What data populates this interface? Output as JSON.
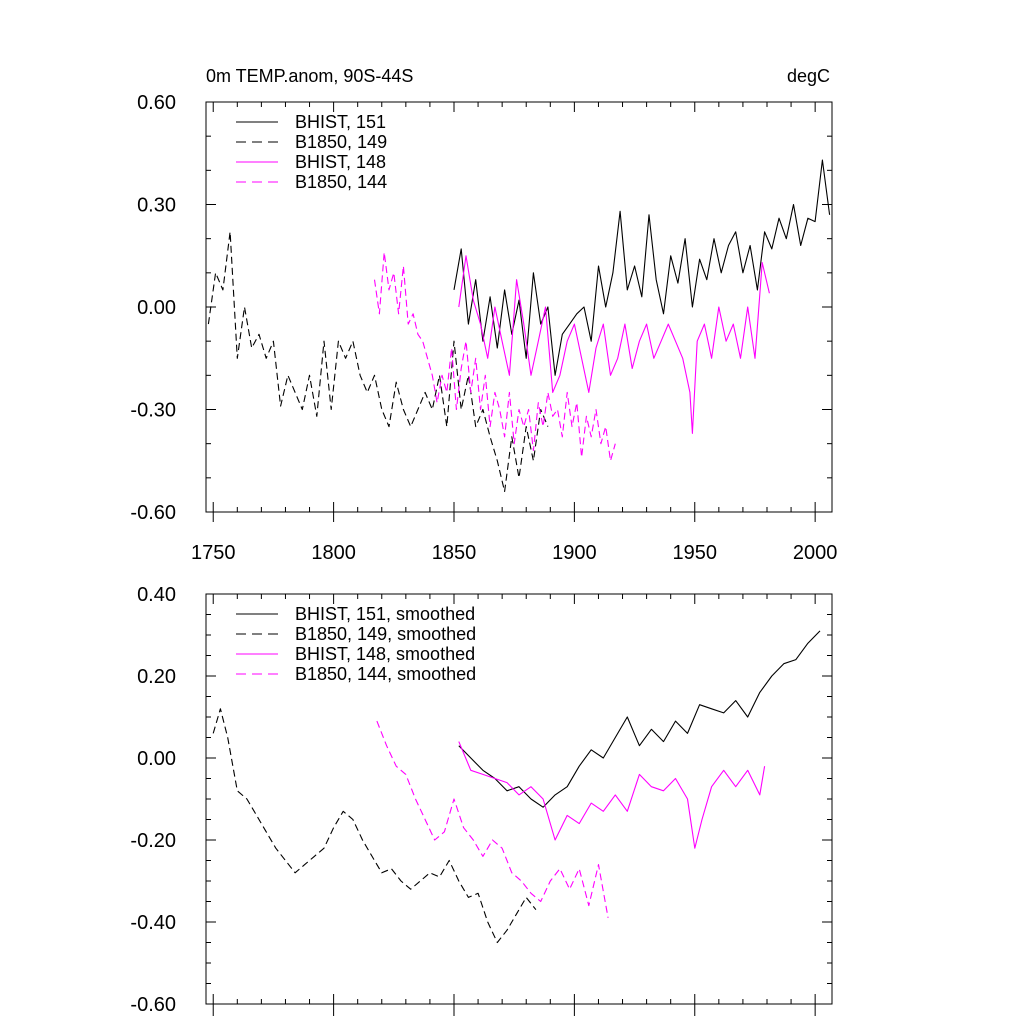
{
  "chart_data": [
    {
      "type": "line",
      "title": "0m TEMP.anom, 90S-44S",
      "units": "degC",
      "xlim": [
        1747,
        2007
      ],
      "ylim": [
        -0.6,
        0.6
      ],
      "yticks": [
        "0.60",
        "0.30",
        "0.00",
        "-0.30",
        "-0.60"
      ],
      "xticks": [
        "1750",
        "1800",
        "1850",
        "1900",
        "1950",
        "2000"
      ],
      "legend_position": "top-left",
      "series": [
        {
          "name": "BHIST, 151",
          "color": "#000000",
          "dash": "solid",
          "x": [
            1850,
            1853,
            1856,
            1859,
            1862,
            1865,
            1868,
            1871,
            1874,
            1877,
            1880,
            1883,
            1886,
            1889,
            1892,
            1895,
            1898,
            1901,
            1904,
            1907,
            1910,
            1913,
            1916,
            1919,
            1922,
            1925,
            1928,
            1931,
            1934,
            1937,
            1940,
            1943,
            1946,
            1949,
            1952,
            1955,
            1958,
            1961,
            1964,
            1967,
            1970,
            1973,
            1976,
            1979,
            1982,
            1985,
            1988,
            1991,
            1994,
            1997,
            2000,
            2003,
            2006
          ],
          "y": [
            0.05,
            0.17,
            -0.05,
            0.08,
            -0.1,
            0.03,
            -0.12,
            0.05,
            -0.08,
            0.02,
            -0.15,
            0.1,
            -0.05,
            0.0,
            -0.2,
            -0.08,
            -0.05,
            -0.02,
            0.0,
            -0.1,
            0.12,
            0.0,
            0.1,
            0.28,
            0.05,
            0.12,
            0.03,
            0.27,
            0.08,
            -0.02,
            0.15,
            0.07,
            0.2,
            0.0,
            0.14,
            0.08,
            0.2,
            0.1,
            0.18,
            0.22,
            0.1,
            0.18,
            0.05,
            0.22,
            0.17,
            0.26,
            0.2,
            0.3,
            0.18,
            0.26,
            0.25,
            0.43,
            0.27
          ]
        },
        {
          "name": "B1850, 149",
          "color": "#000000",
          "dash": "dashed",
          "x": [
            1748,
            1751,
            1754,
            1757,
            1760,
            1763,
            1766,
            1769,
            1772,
            1775,
            1778,
            1781,
            1784,
            1787,
            1790,
            1793,
            1796,
            1799,
            1802,
            1805,
            1808,
            1811,
            1814,
            1817,
            1820,
            1823,
            1826,
            1829,
            1832,
            1835,
            1838,
            1841,
            1844,
            1847,
            1850,
            1853,
            1856,
            1859,
            1862,
            1865,
            1868,
            1871,
            1874,
            1877,
            1880,
            1883,
            1886,
            1889
          ],
          "y": [
            -0.05,
            0.1,
            0.05,
            0.22,
            -0.15,
            0.0,
            -0.12,
            -0.08,
            -0.15,
            -0.1,
            -0.29,
            -0.2,
            -0.25,
            -0.3,
            -0.2,
            -0.32,
            -0.1,
            -0.3,
            -0.1,
            -0.15,
            -0.1,
            -0.2,
            -0.25,
            -0.2,
            -0.3,
            -0.35,
            -0.22,
            -0.3,
            -0.35,
            -0.3,
            -0.25,
            -0.3,
            -0.2,
            -0.35,
            -0.1,
            -0.3,
            -0.2,
            -0.35,
            -0.3,
            -0.38,
            -0.45,
            -0.54,
            -0.38,
            -0.5,
            -0.35,
            -0.45,
            -0.3,
            -0.35
          ]
        },
        {
          "name": "BHIST, 148",
          "color": "#ff00ff",
          "dash": "solid",
          "x": [
            1852,
            1855,
            1858,
            1861,
            1864,
            1867,
            1870,
            1873,
            1876,
            1879,
            1882,
            1885,
            1888,
            1891,
            1894,
            1897,
            1900,
            1903,
            1906,
            1909,
            1912,
            1915,
            1918,
            1921,
            1924,
            1927,
            1930,
            1933,
            1936,
            1939,
            1942,
            1945,
            1948,
            1949,
            1951,
            1954,
            1957,
            1960,
            1963,
            1966,
            1969,
            1972,
            1975,
            1978,
            1981
          ],
          "y": [
            0.0,
            0.15,
            0.02,
            -0.05,
            -0.15,
            0.0,
            -0.1,
            -0.2,
            0.08,
            -0.05,
            -0.2,
            -0.1,
            0.0,
            -0.25,
            -0.2,
            -0.1,
            -0.05,
            -0.15,
            -0.25,
            -0.12,
            -0.05,
            -0.2,
            -0.15,
            -0.05,
            -0.18,
            -0.1,
            -0.05,
            -0.15,
            -0.1,
            -0.05,
            -0.1,
            -0.15,
            -0.25,
            -0.37,
            -0.1,
            -0.05,
            -0.15,
            0.0,
            -0.1,
            -0.05,
            -0.15,
            0.0,
            -0.15,
            0.13,
            0.04
          ]
        },
        {
          "name": "B1850, 144",
          "color": "#ff00ff",
          "dash": "dashed",
          "x": [
            1817,
            1819,
            1821,
            1823,
            1825,
            1827,
            1829,
            1831,
            1833,
            1835,
            1837,
            1839,
            1841,
            1843,
            1845,
            1847,
            1849,
            1851,
            1853,
            1855,
            1857,
            1859,
            1861,
            1863,
            1865,
            1867,
            1869,
            1871,
            1873,
            1875,
            1877,
            1879,
            1881,
            1883,
            1885,
            1887,
            1889,
            1891,
            1893,
            1895,
            1897,
            1899,
            1901,
            1903,
            1905,
            1907,
            1909,
            1911,
            1913,
            1915,
            1917
          ],
          "y": [
            0.08,
            -0.02,
            0.16,
            0.05,
            0.1,
            -0.02,
            0.12,
            -0.05,
            -0.02,
            -0.08,
            -0.1,
            -0.15,
            -0.2,
            -0.28,
            -0.2,
            -0.25,
            -0.12,
            -0.3,
            -0.18,
            -0.1,
            -0.25,
            -0.15,
            -0.3,
            -0.2,
            -0.35,
            -0.25,
            -0.3,
            -0.38,
            -0.25,
            -0.4,
            -0.3,
            -0.35,
            -0.3,
            -0.42,
            -0.28,
            -0.35,
            -0.25,
            -0.32,
            -0.3,
            -0.38,
            -0.25,
            -0.35,
            -0.28,
            -0.44,
            -0.32,
            -0.38,
            -0.3,
            -0.4,
            -0.35,
            -0.45,
            -0.4
          ]
        }
      ]
    },
    {
      "type": "line",
      "title": "",
      "xlim": [
        1747,
        2007
      ],
      "ylim": [
        -0.6,
        0.4
      ],
      "yticks": [
        "0.40",
        "0.20",
        "0.00",
        "-0.20",
        "-0.40",
        "-0.60"
      ],
      "legend_position": "top-left",
      "series": [
        {
          "name": "BHIST, 151, smoothed",
          "color": "#000000",
          "dash": "solid",
          "x": [
            1852,
            1857,
            1862,
            1867,
            1872,
            1877,
            1882,
            1887,
            1892,
            1897,
            1902,
            1907,
            1912,
            1917,
            1922,
            1927,
            1932,
            1937,
            1942,
            1947,
            1952,
            1957,
            1962,
            1967,
            1972,
            1977,
            1982,
            1987,
            1992,
            1997,
            2002
          ],
          "y": [
            0.03,
            0.0,
            -0.03,
            -0.05,
            -0.08,
            -0.07,
            -0.1,
            -0.12,
            -0.09,
            -0.07,
            -0.02,
            0.02,
            0.0,
            0.05,
            0.1,
            0.03,
            0.07,
            0.04,
            0.09,
            0.06,
            0.13,
            0.12,
            0.11,
            0.14,
            0.1,
            0.16,
            0.2,
            0.23,
            0.24,
            0.28,
            0.31
          ]
        },
        {
          "name": "B1850, 149, smoothed",
          "color": "#000000",
          "dash": "dashed",
          "x": [
            1750,
            1753,
            1756,
            1760,
            1764,
            1768,
            1772,
            1776,
            1780,
            1784,
            1788,
            1792,
            1796,
            1800,
            1804,
            1808,
            1812,
            1816,
            1820,
            1824,
            1828,
            1832,
            1836,
            1840,
            1844,
            1848,
            1852,
            1856,
            1860,
            1864,
            1868,
            1872,
            1876,
            1880,
            1884
          ],
          "y": [
            0.06,
            0.12,
            0.05,
            -0.08,
            -0.1,
            -0.14,
            -0.18,
            -0.22,
            -0.25,
            -0.28,
            -0.26,
            -0.24,
            -0.22,
            -0.17,
            -0.13,
            -0.15,
            -0.2,
            -0.24,
            -0.28,
            -0.27,
            -0.3,
            -0.32,
            -0.3,
            -0.28,
            -0.29,
            -0.25,
            -0.3,
            -0.34,
            -0.33,
            -0.4,
            -0.45,
            -0.42,
            -0.38,
            -0.34,
            -0.37
          ]
        },
        {
          "name": "BHIST, 148, smoothed",
          "color": "#ff00ff",
          "dash": "solid",
          "x": [
            1852,
            1857,
            1862,
            1867,
            1872,
            1877,
            1882,
            1887,
            1892,
            1897,
            1902,
            1907,
            1912,
            1917,
            1922,
            1927,
            1932,
            1937,
            1942,
            1947,
            1950,
            1953,
            1957,
            1962,
            1967,
            1972,
            1977,
            1979
          ],
          "y": [
            0.04,
            -0.03,
            -0.04,
            -0.05,
            -0.06,
            -0.09,
            -0.07,
            -0.1,
            -0.2,
            -0.14,
            -0.16,
            -0.11,
            -0.13,
            -0.09,
            -0.13,
            -0.04,
            -0.07,
            -0.08,
            -0.05,
            -0.1,
            -0.22,
            -0.15,
            -0.07,
            -0.03,
            -0.07,
            -0.03,
            -0.09,
            -0.02
          ]
        },
        {
          "name": "B1850, 144, smoothed",
          "color": "#ff00ff",
          "dash": "dashed",
          "x": [
            1818,
            1822,
            1826,
            1830,
            1834,
            1838,
            1842,
            1846,
            1850,
            1854,
            1858,
            1862,
            1866,
            1870,
            1874,
            1878,
            1882,
            1886,
            1890,
            1894,
            1898,
            1902,
            1906,
            1910,
            1914
          ],
          "y": [
            0.09,
            0.03,
            -0.02,
            -0.04,
            -0.1,
            -0.15,
            -0.2,
            -0.18,
            -0.1,
            -0.17,
            -0.2,
            -0.24,
            -0.2,
            -0.22,
            -0.28,
            -0.3,
            -0.33,
            -0.35,
            -0.3,
            -0.27,
            -0.32,
            -0.27,
            -0.36,
            -0.26,
            -0.39
          ]
        }
      ]
    }
  ]
}
